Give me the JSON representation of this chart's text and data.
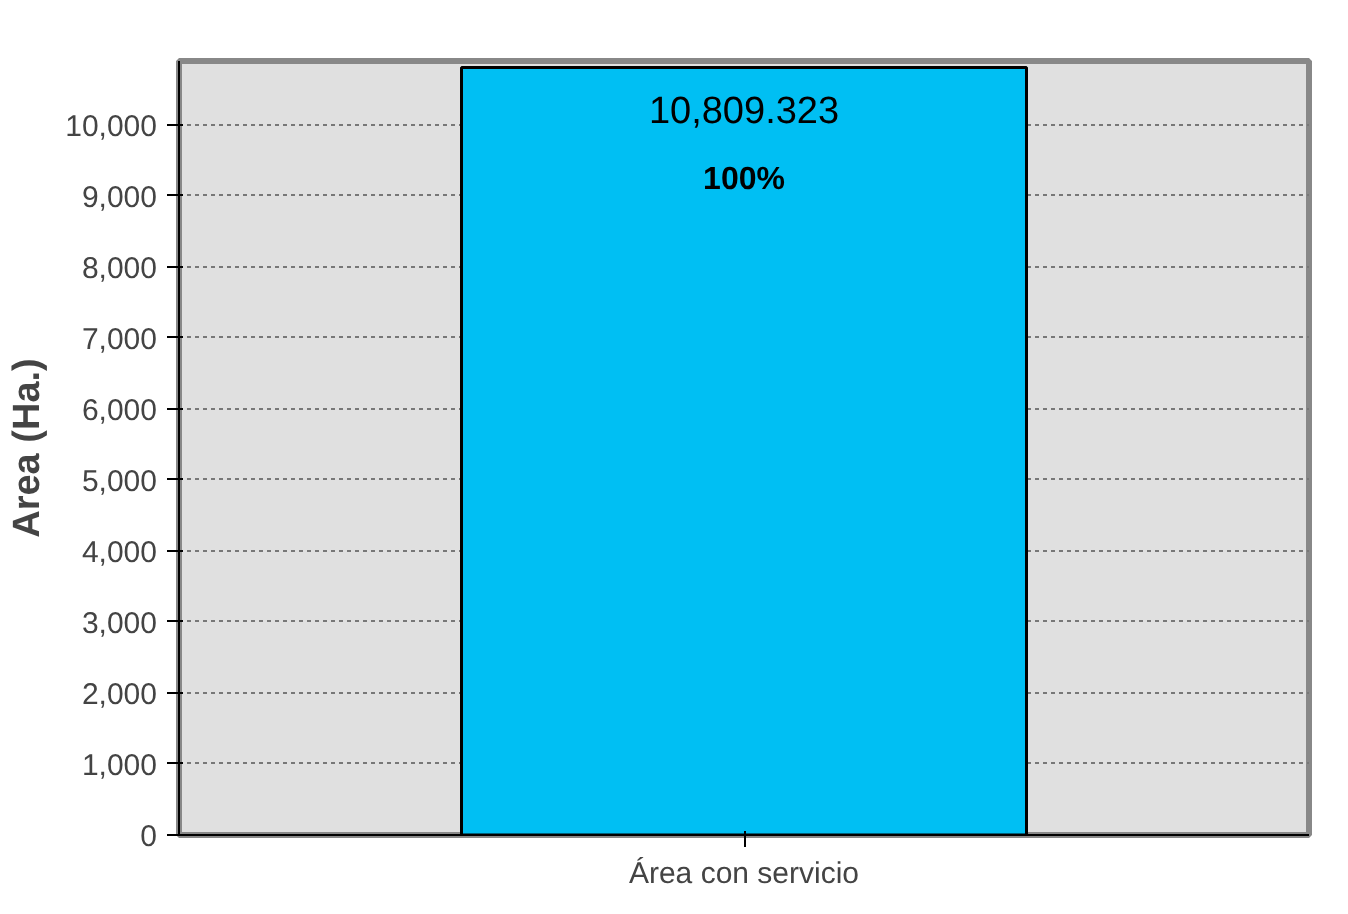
{
  "chart_data": {
    "type": "bar",
    "ylabel": "Area (Ha.)",
    "categories": [
      "Área con servicio"
    ],
    "values": [
      10809.323
    ],
    "color": "#00bff3",
    "value_labels": [
      "10,809.323"
    ],
    "annotations": [
      "100%"
    ],
    "ylim": [
      0,
      10900
    ],
    "yticks": [
      0,
      {
        "value": 1000,
        "label": "1,000"
      },
      {
        "value": 2000,
        "label": "2,000"
      },
      {
        "value": 3000,
        "label": "3,000"
      },
      {
        "value": 4000,
        "label": "4,000"
      },
      {
        "value": 5000,
        "label": "5,000"
      },
      {
        "value": 6000,
        "label": "6,000"
      },
      {
        "value": 7000,
        "label": "7,000"
      },
      {
        "value": 8000,
        "label": "8,000"
      },
      {
        "value": 9000,
        "label": "9,000"
      },
      {
        "value": 10000,
        "label": "10,000"
      }
    ],
    "grid": "y"
  }
}
